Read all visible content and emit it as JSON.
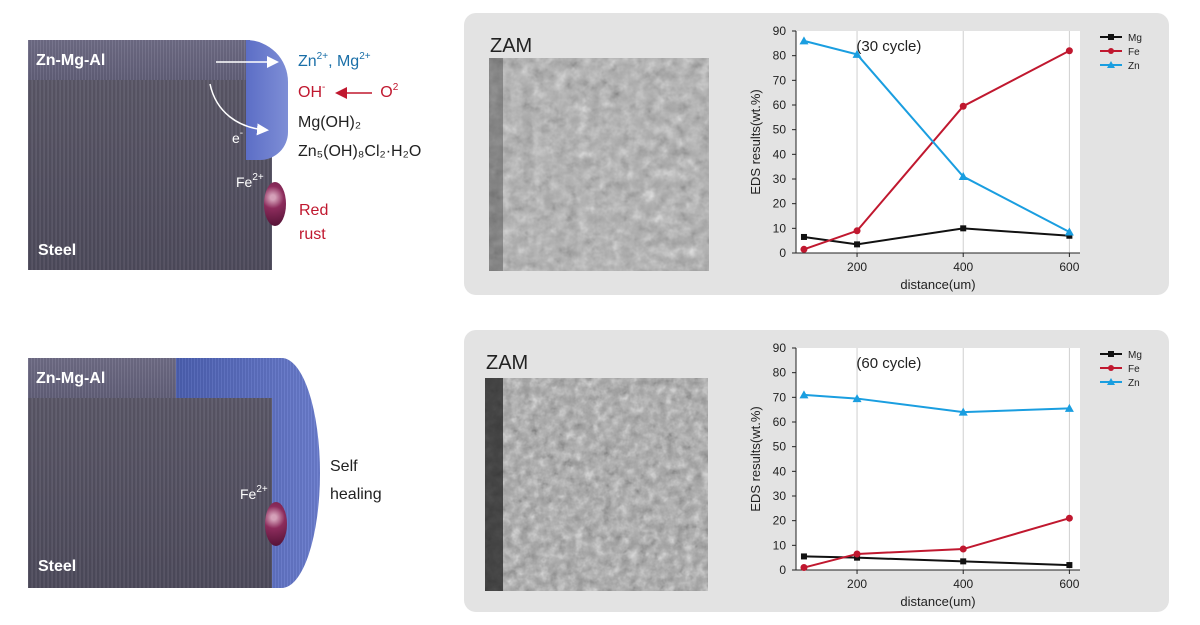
{
  "diagrams": [
    {
      "coating_label": "Zn-Mg-Al",
      "steel_label": "Steel",
      "ions_line": {
        "zn": "Zn",
        "zn_sup": "2+",
        "sep": ", ",
        "mg": "Mg",
        "mg_sup": "2+"
      },
      "oh_line": {
        "oh": "OH",
        "oh_sup": "-",
        "o2": "O",
        "o2_sup": "2"
      },
      "electron": {
        "e": "e",
        "sup": "-"
      },
      "product1": "Mg(OH)₂",
      "product2": "Zn₅(OH)₈Cl₂·H₂O",
      "fe": {
        "base": "Fe",
        "sup": "2+"
      },
      "result_line1": "Red",
      "result_line2": "rust",
      "result_color": "#c0182f"
    },
    {
      "coating_label": "Zn-Mg-Al",
      "steel_label": "Steel",
      "fe": {
        "base": "Fe",
        "sup": "2+"
      },
      "result_line1": "Self",
      "result_line2": "healing",
      "result_color": "#222222"
    }
  ],
  "panels": [
    {
      "sem_label": "ZAM"
    },
    {
      "sem_label": "ZAM"
    }
  ],
  "colors": {
    "mg": "#111111",
    "fe": "#c0182f",
    "zn": "#1a9ee0",
    "ion_blue": "#1a6fa8",
    "oh_red": "#c0182f"
  },
  "chart_data": [
    {
      "type": "line",
      "title": "(30 cycle)",
      "xlabel": "distance(um)",
      "ylabel": "EDS results(wt.%)",
      "xticks": [
        200,
        400,
        600
      ],
      "yticks": [
        0,
        10,
        20,
        30,
        40,
        50,
        60,
        70,
        80,
        90
      ],
      "xlim": [
        85,
        620
      ],
      "ylim": [
        0,
        90
      ],
      "grid": "vertical",
      "legend": "top-right",
      "series": [
        {
          "name": "Mg",
          "marker": "square",
          "color": "#111111",
          "x": [
            100,
            200,
            400,
            600
          ],
          "y": [
            6.5,
            3.5,
            10,
            7
          ]
        },
        {
          "name": "Fe",
          "marker": "circle",
          "color": "#c0182f",
          "x": [
            100,
            200,
            400,
            600
          ],
          "y": [
            1.5,
            9,
            59.5,
            82
          ]
        },
        {
          "name": "Zn",
          "marker": "triangle",
          "color": "#1a9ee0",
          "x": [
            100,
            200,
            400,
            600
          ],
          "y": [
            86,
            80.5,
            31,
            8.5
          ]
        }
      ]
    },
    {
      "type": "line",
      "title": "(60 cycle)",
      "xlabel": "distance(um)",
      "ylabel": "EDS results(wt.%)",
      "xticks": [
        200,
        400,
        600
      ],
      "yticks": [
        0,
        10,
        20,
        30,
        40,
        50,
        60,
        70,
        80,
        90
      ],
      "xlim": [
        85,
        620
      ],
      "ylim": [
        0,
        90
      ],
      "grid": "vertical",
      "legend": "top-right",
      "series": [
        {
          "name": "Mg",
          "marker": "square",
          "color": "#111111",
          "x": [
            100,
            200,
            400,
            600
          ],
          "y": [
            5.5,
            5,
            3.5,
            2
          ]
        },
        {
          "name": "Fe",
          "marker": "circle",
          "color": "#c0182f",
          "x": [
            100,
            200,
            400,
            600
          ],
          "y": [
            1,
            6.5,
            8.5,
            21
          ]
        },
        {
          "name": "Zn",
          "marker": "triangle",
          "color": "#1a9ee0",
          "x": [
            100,
            200,
            400,
            600
          ],
          "y": [
            71,
            69.5,
            64,
            65.5
          ]
        }
      ]
    }
  ]
}
